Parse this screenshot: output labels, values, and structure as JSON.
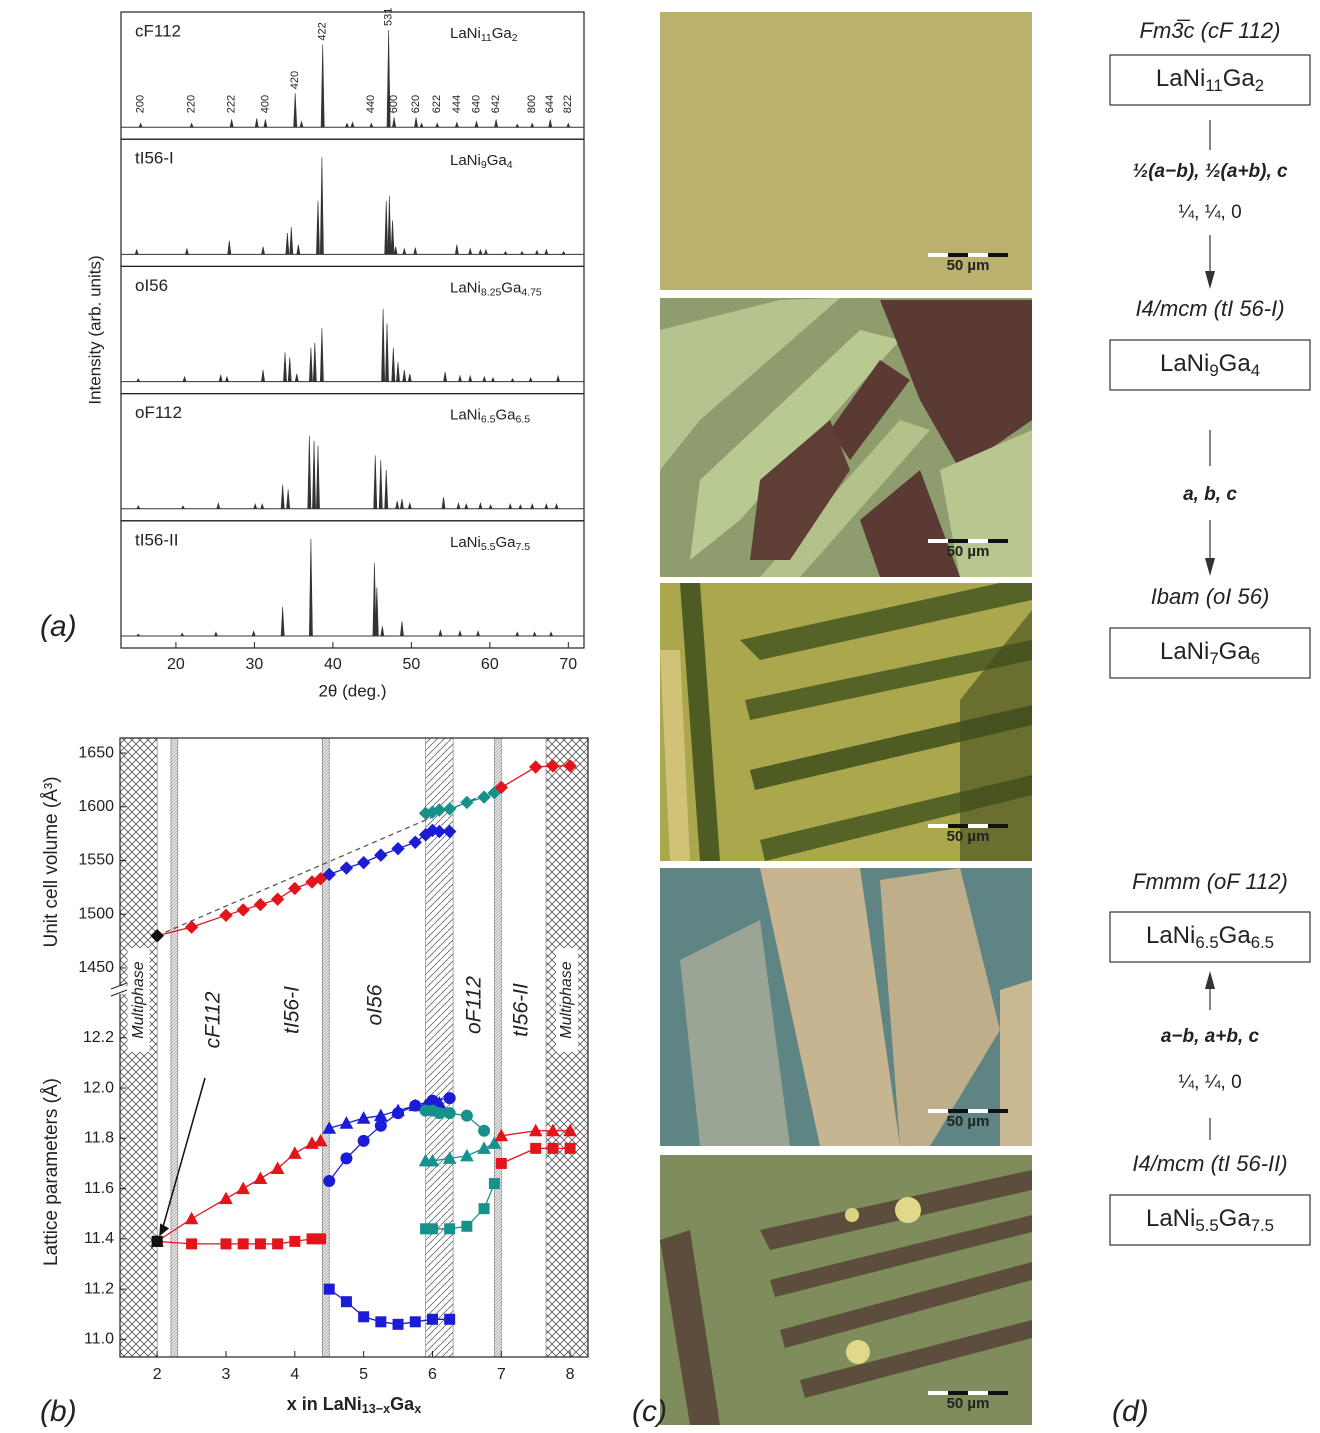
{
  "panel_labels": [
    "(a)",
    "(b)",
    "(c)",
    "(d)"
  ],
  "chart_data": [
    {
      "type": "stick",
      "xlabel": "2θ (deg.)",
      "ylabel": "Intensity (arb. units)",
      "xlim": [
        13,
        72
      ],
      "xticks": [
        20,
        30,
        40,
        50,
        60,
        70
      ],
      "ylim": [
        0,
        100
      ],
      "color": "#333333",
      "panels": [
        {
          "phase": "cF112",
          "formula": [
            "LaNi",
            "11",
            "Ga",
            "2"
          ],
          "x": [
            15.5,
            22.0,
            27.1,
            30.3,
            31.4,
            35.2,
            36.0,
            38.7,
            41.8,
            42.5,
            44.9,
            47.1,
            47.8,
            50.6,
            51.3,
            53.3,
            55.8,
            58.3,
            60.8,
            63.5,
            65.4,
            67.7,
            70.0
          ],
          "values": [
            4,
            4,
            8,
            9,
            8,
            35,
            6,
            85,
            4,
            5,
            4,
            100,
            10,
            10,
            4,
            4,
            5,
            6,
            8,
            3,
            4,
            8,
            4
          ],
          "hkl": [
            {
              "x": 15.5,
              "label": "200"
            },
            {
              "x": 22.0,
              "label": "220"
            },
            {
              "x": 27.1,
              "label": "222"
            },
            {
              "x": 31.4,
              "label": "400"
            },
            {
              "x": 35.2,
              "label": "420"
            },
            {
              "x": 38.7,
              "label": "422"
            },
            {
              "x": 44.9,
              "label": "440"
            },
            {
              "x": 47.1,
              "label": "531"
            },
            {
              "x": 47.8,
              "label": "600"
            },
            {
              "x": 50.6,
              "label": "620"
            },
            {
              "x": 53.3,
              "label": "622"
            },
            {
              "x": 55.8,
              "label": "444"
            },
            {
              "x": 58.3,
              "label": "640"
            },
            {
              "x": 60.8,
              "label": "642"
            },
            {
              "x": 65.4,
              "label": "800"
            },
            {
              "x": 67.7,
              "label": "644"
            },
            {
              "x": 70.0,
              "label": "822"
            }
          ]
        },
        {
          "phase": "tI56-I",
          "formula": [
            "LaNi",
            "9",
            "Ga",
            "4"
          ],
          "x": [
            15.0,
            21.4,
            26.8,
            31.1,
            34.2,
            34.7,
            35.6,
            38.1,
            38.6,
            46.8,
            47.2,
            47.6,
            48.0,
            49.1,
            50.5,
            55.8,
            57.5,
            58.8,
            59.5,
            62.0,
            64.1,
            66.0,
            67.2,
            69.4
          ],
          "values": [
            5,
            6,
            14,
            8,
            22,
            28,
            10,
            55,
            100,
            55,
            60,
            35,
            8,
            6,
            7,
            10,
            6,
            5,
            5,
            3,
            3,
            4,
            5,
            3
          ]
        },
        {
          "phase": "oI56",
          "formula": [
            "LaNi",
            "8.25",
            "Ga",
            "4.75"
          ],
          "x": [
            15.2,
            21.1,
            25.7,
            26.5,
            31.1,
            33.9,
            34.5,
            35.4,
            37.2,
            37.7,
            38.6,
            46.4,
            46.9,
            47.7,
            48.3,
            49.1,
            49.8,
            54.3,
            56.2,
            57.5,
            59.3,
            60.4,
            62.9,
            65.2,
            68.7
          ],
          "values": [
            3,
            5,
            7,
            5,
            12,
            30,
            25,
            8,
            35,
            40,
            55,
            75,
            60,
            35,
            20,
            12,
            8,
            10,
            6,
            6,
            5,
            4,
            3,
            4,
            6
          ]
        },
        {
          "phase": "oF112",
          "formula": [
            "LaNi",
            "6.5",
            "Ga",
            "6.5"
          ],
          "x": [
            15.2,
            20.9,
            25.4,
            30.1,
            31.0,
            33.6,
            34.3,
            37.0,
            37.6,
            38.1,
            45.4,
            46.1,
            46.8,
            48.2,
            48.8,
            49.8,
            54.1,
            56.0,
            57.0,
            58.8,
            60.1,
            62.6,
            63.9,
            65.4,
            67.2,
            68.5
          ],
          "values": [
            3,
            3,
            6,
            5,
            5,
            25,
            20,
            75,
            70,
            65,
            55,
            50,
            40,
            8,
            10,
            6,
            12,
            6,
            5,
            6,
            4,
            5,
            4,
            5,
            5,
            5
          ]
        },
        {
          "phase": "tI56-II",
          "formula": [
            "LaNi",
            "5.5",
            "Ga",
            "7.5"
          ],
          "x": [
            15.2,
            20.8,
            25.1,
            29.9,
            33.6,
            37.2,
            45.3,
            45.6,
            46.3,
            48.8,
            53.7,
            56.2,
            58.5,
            63.5,
            65.7,
            67.8
          ],
          "values": [
            2,
            3,
            4,
            5,
            30,
            100,
            75,
            50,
            10,
            15,
            6,
            5,
            5,
            4,
            4,
            4
          ]
        }
      ]
    },
    {
      "type": "line",
      "ylabel": "Unit cell volume (Å³)",
      "xlim": [
        1.46,
        8.26
      ],
      "ylim": [
        1429.5,
        1664
      ],
      "yticks": [
        1450,
        1500,
        1550,
        1600,
        1650
      ],
      "reference_line": {
        "x": [
          2,
          7
        ],
        "values": [
          1480,
          1618
        ],
        "color": "#555555"
      },
      "series": [
        {
          "color": "#e3141c",
          "marker": "diamond",
          "x": [
            2,
            2.5,
            3,
            3.25,
            3.5,
            3.75,
            4,
            4.25,
            4.375
          ],
          "values": [
            1480,
            1488,
            1499,
            1504,
            1509,
            1514,
            1524,
            1530,
            1533
          ]
        },
        {
          "color": "#1c1cd6",
          "marker": "diamond",
          "x": [
            4.5,
            4.75,
            5,
            5.25,
            5.5,
            5.75,
            5.9,
            6,
            6.1,
            6.25
          ],
          "values": [
            1537,
            1543,
            1548,
            1555,
            1561,
            1567,
            1574,
            1578,
            1577,
            1577
          ]
        },
        {
          "color": "#17918b",
          "marker": "diamond",
          "x": [
            5.9,
            6,
            6.1,
            6.25,
            6.5,
            6.75,
            6.9
          ],
          "values": [
            1594,
            1595,
            1597,
            1598,
            1604,
            1609,
            1613
          ]
        },
        {
          "color": "#e3141c",
          "marker": "diamond",
          "x": [
            7,
            7.5,
            7.75,
            8
          ],
          "values": [
            1618,
            1637,
            1638,
            1638
          ]
        },
        {
          "color": "#111111",
          "marker": "diamond",
          "x": [
            2
          ],
          "values": [
            1480
          ]
        }
      ]
    },
    {
      "type": "line",
      "ylabel": "Lattice parameters (Å)",
      "xlabel": [
        "x in LaNi",
        "13−x",
        "Ga",
        "x"
      ],
      "xlim": [
        1.46,
        8.26
      ],
      "xticks": [
        2,
        3,
        4,
        5,
        6,
        7,
        8
      ],
      "ylim": [
        10.93,
        12.39
      ],
      "yticks": [
        {
          "value": 11,
          "label": "11.0"
        },
        11.2,
        11.4,
        11.6,
        11.8,
        {
          "value": 12,
          "label": "12.0"
        },
        12.2
      ],
      "regions": [
        {
          "x": [
            1.46,
            2.0
          ],
          "style": "crosshatch",
          "label": "Multiphase"
        },
        {
          "x": [
            2.2,
            2.3
          ],
          "style": "narrow"
        },
        {
          "x": [
            4.4,
            4.5
          ],
          "style": "narrow"
        },
        {
          "x": [
            5.9,
            6.3
          ],
          "style": "hatch"
        },
        {
          "x": [
            6.9,
            7.0
          ],
          "style": "narrow"
        },
        {
          "x": [
            7.65,
            8.26
          ],
          "style": "crosshatch",
          "label": "Multiphase"
        }
      ],
      "annotations": [
        {
          "text": "cF112",
          "color": "#111111"
        },
        {
          "text": "tI56-I",
          "color": "#e3141c"
        },
        {
          "text": "oI56",
          "color": "#1c1cd6"
        },
        {
          "text": "oF112",
          "color": "#17918b"
        },
        {
          "text": "tI56-II",
          "color": "#e3141c"
        }
      ],
      "series": [
        {
          "color": "#e3141c",
          "marker": "triangle",
          "x": [
            2,
            2.5,
            3,
            3.25,
            3.5,
            3.75,
            4,
            4.25,
            4.375
          ],
          "values": [
            11.39,
            11.48,
            11.56,
            11.6,
            11.64,
            11.68,
            11.74,
            11.78,
            11.79
          ]
        },
        {
          "color": "#e3141c",
          "marker": "square",
          "x": [
            2,
            2.5,
            3,
            3.25,
            3.5,
            3.75,
            4,
            4.25,
            4.375
          ],
          "values": [
            11.39,
            11.38,
            11.38,
            11.38,
            11.38,
            11.38,
            11.39,
            11.4,
            11.4
          ]
        },
        {
          "color": "#1c1cd6",
          "marker": "triangle",
          "x": [
            4.5,
            4.75,
            5,
            5.25,
            5.5,
            5.75,
            5.9,
            6,
            6.1
          ],
          "values": [
            11.84,
            11.86,
            11.88,
            11.89,
            11.91,
            11.93,
            11.93,
            11.94,
            11.94
          ]
        },
        {
          "color": "#1c1cd6",
          "marker": "circle",
          "x": [
            4.5,
            4.75,
            5,
            5.25,
            5.5,
            5.75,
            6,
            6.25
          ],
          "values": [
            11.63,
            11.72,
            11.79,
            11.85,
            11.9,
            11.93,
            11.95,
            11.96
          ]
        },
        {
          "color": "#1c1cd6",
          "marker": "square",
          "x": [
            4.5,
            4.75,
            5,
            5.25,
            5.5,
            5.75,
            6,
            6.25
          ],
          "values": [
            11.2,
            11.15,
            11.09,
            11.07,
            11.06,
            11.07,
            11.08,
            11.08
          ]
        },
        {
          "color": "#17918b",
          "marker": "circle",
          "x": [
            5.9,
            6,
            6.1,
            6.25,
            6.5,
            6.75
          ],
          "values": [
            11.91,
            11.91,
            11.9,
            11.9,
            11.89,
            11.83
          ]
        },
        {
          "color": "#17918b",
          "marker": "triangle",
          "x": [
            5.9,
            6,
            6.25,
            6.5,
            6.75,
            6.9
          ],
          "values": [
            11.71,
            11.71,
            11.72,
            11.73,
            11.76,
            11.78
          ]
        },
        {
          "color": "#17918b",
          "marker": "square",
          "x": [
            5.9,
            6,
            6.25,
            6.5,
            6.75,
            6.9
          ],
          "values": [
            11.44,
            11.44,
            11.44,
            11.45,
            11.52,
            11.62
          ]
        },
        {
          "color": "#e3141c",
          "marker": "triangle",
          "x": [
            7,
            7.5,
            7.75,
            8
          ],
          "values": [
            11.81,
            11.83,
            11.83,
            11.83
          ]
        },
        {
          "color": "#e3141c",
          "marker": "square",
          "x": [
            7,
            7.5,
            7.75,
            8
          ],
          "values": [
            11.7,
            11.76,
            11.76,
            11.76
          ]
        },
        {
          "color": "#111111",
          "marker": "square",
          "x": [
            2
          ],
          "values": [
            11.39
          ]
        }
      ]
    }
  ],
  "micrographs": {
    "scale_labels": [
      "50 µm",
      "50 µm",
      "50 µm",
      "50 µm",
      "50 µm"
    ]
  },
  "diagram": {
    "nodes": [
      {
        "space_group": "Fm3̅c (cF 112)",
        "formula": [
          "LaNi",
          "11",
          "Ga",
          "2"
        ]
      },
      {
        "space_group": "I4/mcm (tI 56-I)",
        "formula": [
          "LaNi",
          "9",
          "Ga",
          "4"
        ]
      },
      {
        "space_group": "Ibam (oI 56)",
        "formula": [
          "LaNi",
          "7",
          "Ga",
          "6"
        ]
      },
      {
        "space_group": "Fmmm (oF 112)",
        "formula": [
          "LaNi",
          "6.5",
          "Ga",
          "6.5"
        ]
      },
      {
        "space_group": "I4/mcm (tI 56-II)",
        "formula": [
          "LaNi",
          "5.5",
          "Ga",
          "7.5"
        ]
      }
    ],
    "transformations": [
      {
        "direction": "down",
        "lines": [
          "½(a−b), ½(a+b), c",
          "¼, ¼, 0"
        ]
      },
      {
        "direction": "down",
        "lines": [
          "a, b, c"
        ]
      },
      {
        "direction": "up",
        "lines": [
          "a−b, a+b, c",
          "¼, ¼, 0"
        ]
      }
    ]
  }
}
